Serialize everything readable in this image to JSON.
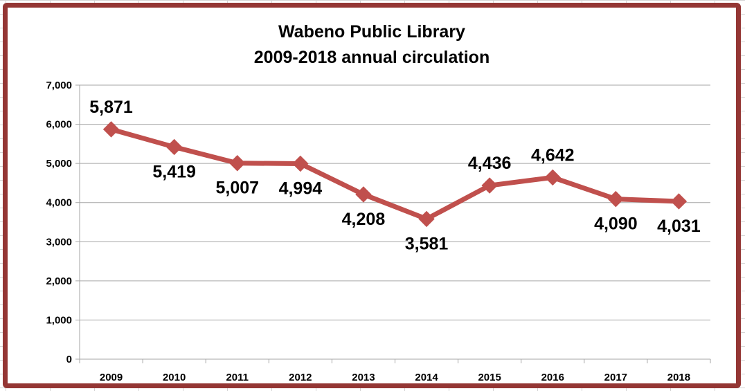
{
  "colors": {
    "frame": "#943634",
    "series": "#c0504d",
    "gridline": "#a6a6a6"
  },
  "chart_data": {
    "type": "line",
    "title": "Wabeno Public Library",
    "subtitle": "2009-2018 annual circulation",
    "categories": [
      "2009",
      "2010",
      "2011",
      "2012",
      "2013",
      "2014",
      "2015",
      "2016",
      "2017",
      "2018"
    ],
    "series": [
      {
        "values": [
          5871,
          5419,
          5007,
          4994,
          4208,
          3581,
          4436,
          4642,
          4090,
          4031
        ],
        "data_labels": [
          "5,871",
          "5,419",
          "5,007",
          "4,994",
          "4,208",
          "3,581",
          "4,436",
          "4,642",
          "4,090",
          "4,031"
        ],
        "marker": "diamond",
        "color": "#c0504d"
      }
    ],
    "y_ticks": [
      "0",
      "1,000",
      "2,000",
      "3,000",
      "4,000",
      "5,000",
      "6,000",
      "7,000"
    ],
    "ylim": [
      0,
      7000
    ],
    "grid": "horizontal",
    "legend": "none",
    "xlabel": "",
    "ylabel": ""
  }
}
